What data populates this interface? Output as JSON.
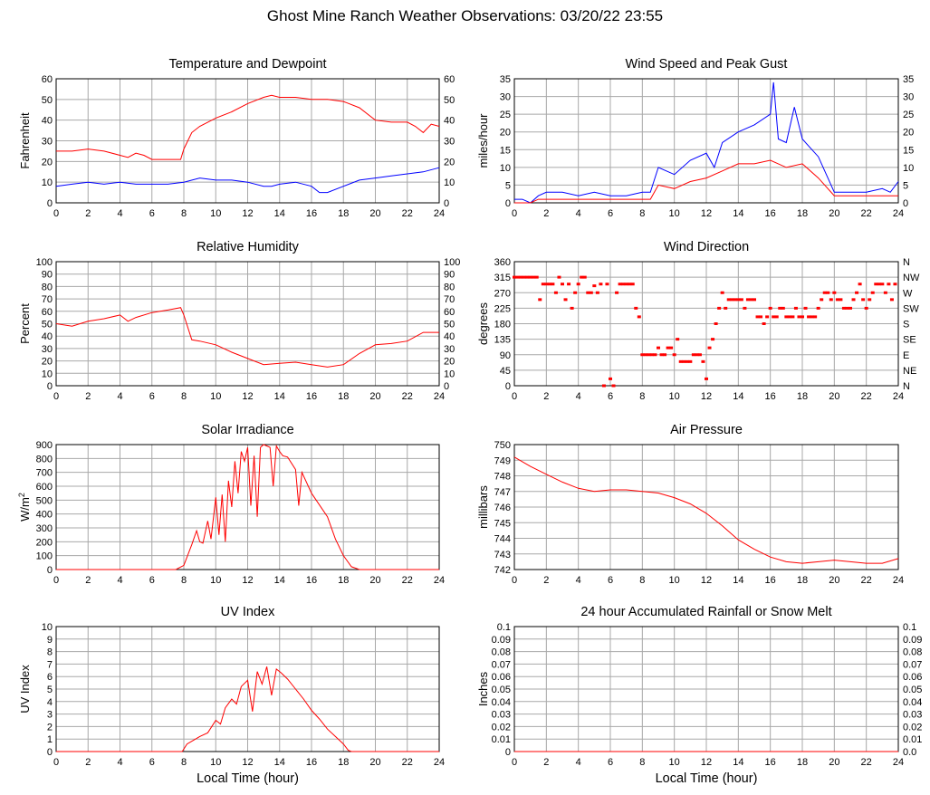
{
  "page_title": "Ghost Mine Ranch Weather Observations: 03/20/22 23:55",
  "x_axis_label": "Local Time (hour)",
  "chart_data": [
    {
      "id": "temp",
      "type": "line",
      "title": "Temperature and Dewpoint",
      "ylabel": "Fahrenheit",
      "xlim": [
        0,
        24
      ],
      "ylim": [
        0,
        60
      ],
      "yticks": [
        0,
        10,
        20,
        30,
        40,
        50,
        60
      ],
      "right_ticks": [
        "0",
        "10",
        "20",
        "30",
        "40",
        "50",
        "60"
      ],
      "grid": true,
      "series": [
        {
          "color": "#ff0000",
          "x": [
            0,
            1,
            2,
            3,
            4,
            4.5,
            5,
            5.5,
            6,
            6.5,
            7,
            7.8,
            8,
            8.5,
            9,
            10,
            11,
            12,
            13,
            13.5,
            14,
            15,
            16,
            17,
            18,
            19,
            20,
            21,
            22,
            22.5,
            23,
            23.5,
            24
          ],
          "values": [
            25,
            25,
            26,
            25,
            23,
            22,
            24,
            23,
            21,
            21,
            21,
            21,
            26,
            34,
            37,
            41,
            44,
            48,
            51,
            52,
            51,
            51,
            50,
            50,
            49,
            46,
            40,
            39,
            39,
            37,
            34,
            38,
            37
          ]
        },
        {
          "color": "#0000ff",
          "x": [
            0,
            1,
            2,
            3,
            4,
            5,
            6,
            7,
            8,
            9,
            10,
            11,
            12,
            13,
            13.5,
            14,
            15,
            16,
            16.5,
            17,
            18,
            19,
            20,
            21,
            22,
            23,
            24
          ],
          "values": [
            8,
            9,
            10,
            9,
            10,
            9,
            9,
            9,
            10,
            12,
            11,
            11,
            10,
            8,
            8,
            9,
            10,
            8,
            5,
            5,
            8,
            11,
            12,
            13,
            14,
            15,
            17
          ]
        }
      ]
    },
    {
      "id": "wind",
      "type": "line",
      "title": "Wind Speed and Peak Gust",
      "ylabel": "miles/hour",
      "xlim": [
        0,
        24
      ],
      "ylim": [
        0,
        35
      ],
      "yticks": [
        0,
        5,
        10,
        15,
        20,
        25,
        30,
        35
      ],
      "right_ticks": [
        "0",
        "5",
        "10",
        "15",
        "20",
        "25",
        "30",
        "35"
      ],
      "grid": true,
      "series": [
        {
          "color": "#0000ff",
          "x": [
            0,
            0.5,
            1,
            1.5,
            2,
            3,
            4,
            5,
            6,
            7,
            8,
            8.5,
            9,
            10,
            11,
            12,
            12.5,
            13,
            14,
            15,
            16,
            16.2,
            16.5,
            17,
            17.5,
            18,
            19,
            19.5,
            20,
            21,
            22,
            23,
            23.5,
            24
          ],
          "values": [
            1,
            1,
            0,
            2,
            3,
            3,
            2,
            3,
            2,
            2,
            3,
            3,
            10,
            8,
            12,
            14,
            10,
            17,
            20,
            22,
            25,
            34,
            18,
            17,
            27,
            18,
            13,
            8,
            3,
            3,
            3,
            4,
            3,
            6
          ]
        },
        {
          "color": "#ff0000",
          "x": [
            0,
            1,
            1.5,
            2,
            3,
            4,
            5,
            6,
            7,
            8,
            8.5,
            9,
            10,
            11,
            12,
            13,
            14,
            15,
            16,
            17,
            18,
            19,
            20,
            21,
            22,
            23,
            24
          ],
          "values": [
            0,
            0,
            1,
            1,
            1,
            1,
            1,
            1,
            1,
            1,
            1,
            5,
            4,
            6,
            7,
            9,
            11,
            11,
            12,
            10,
            11,
            7,
            2,
            2,
            2,
            2,
            2
          ]
        }
      ]
    },
    {
      "id": "rh",
      "type": "line",
      "title": "Relative Humidity",
      "ylabel": "Percent",
      "xlim": [
        0,
        24
      ],
      "ylim": [
        0,
        100
      ],
      "yticks": [
        0,
        10,
        20,
        30,
        40,
        50,
        60,
        70,
        80,
        90,
        100
      ],
      "right_ticks": [
        "0",
        "10",
        "20",
        "30",
        "40",
        "50",
        "60",
        "70",
        "80",
        "90",
        "100"
      ],
      "grid": true,
      "series": [
        {
          "color": "#ff0000",
          "x": [
            0,
            1,
            2,
            3,
            4,
            4.5,
            5,
            6,
            7,
            7.8,
            8,
            8.5,
            9,
            10,
            11,
            12,
            13,
            14,
            15,
            16,
            17,
            18,
            19,
            20,
            21,
            22,
            23,
            24
          ],
          "values": [
            50,
            48,
            52,
            54,
            57,
            52,
            55,
            59,
            61,
            63,
            57,
            37,
            36,
            33,
            27,
            22,
            17,
            18,
            19,
            17,
            15,
            17,
            26,
            33,
            34,
            36,
            43,
            43
          ]
        }
      ]
    },
    {
      "id": "wdir",
      "type": "scatter",
      "title": "Wind Direction",
      "ylabel": "degrees",
      "xlim": [
        0,
        24
      ],
      "ylim": [
        0,
        360
      ],
      "yticks": [
        0,
        45,
        90,
        135,
        180,
        225,
        270,
        315,
        360
      ],
      "right_ticks": [
        "N",
        "NE",
        "E",
        "SE",
        "S",
        "SW",
        "W",
        "NW",
        "N"
      ],
      "grid": true,
      "series": [
        {
          "color": "#ff0000",
          "x": [
            0,
            0.2,
            0.4,
            0.6,
            0.8,
            1.0,
            1.2,
            1.4,
            1.6,
            1.8,
            2.0,
            2.2,
            2.4,
            2.6,
            2.8,
            3.0,
            3.2,
            3.4,
            3.6,
            3.8,
            4.0,
            4.2,
            4.4,
            4.6,
            4.8,
            5.0,
            5.2,
            5.4,
            5.6,
            5.8,
            6.0,
            6.2,
            6.4,
            6.6,
            6.8,
            7.0,
            7.2,
            7.4,
            7.6,
            7.8,
            8.0,
            8.2,
            8.4,
            8.6,
            8.8,
            9.0,
            9.2,
            9.4,
            9.6,
            9.8,
            10.0,
            10.2,
            10.4,
            10.6,
            10.8,
            11.0,
            11.2,
            11.4,
            11.6,
            11.8,
            12.0,
            12.2,
            12.4,
            12.6,
            12.8,
            13.0,
            13.2,
            13.4,
            13.6,
            13.8,
            14.0,
            14.2,
            14.4,
            14.6,
            14.8,
            15.0,
            15.2,
            15.4,
            15.6,
            15.8,
            16.0,
            16.2,
            16.4,
            16.6,
            16.8,
            17.0,
            17.2,
            17.4,
            17.6,
            17.8,
            18.0,
            18.2,
            18.4,
            18.6,
            18.8,
            19.0,
            19.2,
            19.4,
            19.6,
            19.8,
            20.0,
            20.2,
            20.4,
            20.6,
            20.8,
            21.0,
            21.2,
            21.4,
            21.6,
            21.8,
            22.0,
            22.2,
            22.4,
            22.6,
            22.8,
            23.0,
            23.2,
            23.4,
            23.6,
            23.8
          ],
          "values": [
            315,
            315,
            315,
            315,
            315,
            315,
            315,
            315,
            250,
            295,
            295,
            295,
            295,
            270,
            315,
            295,
            250,
            295,
            225,
            270,
            295,
            315,
            315,
            270,
            270,
            290,
            270,
            295,
            0,
            295,
            20,
            0,
            270,
            295,
            295,
            295,
            295,
            295,
            225,
            200,
            90,
            90,
            90,
            90,
            90,
            110,
            90,
            90,
            110,
            110,
            90,
            135,
            70,
            70,
            70,
            70,
            90,
            90,
            90,
            70,
            20,
            110,
            135,
            180,
            225,
            270,
            225,
            250,
            250,
            250,
            250,
            250,
            225,
            250,
            250,
            250,
            200,
            200,
            180,
            200,
            225,
            200,
            200,
            225,
            225,
            200,
            200,
            200,
            225,
            200,
            200,
            225,
            200,
            200,
            200,
            225,
            250,
            270,
            270,
            250,
            270,
            250,
            250,
            225,
            225,
            225,
            250,
            270,
            295,
            250,
            225,
            250,
            270,
            295,
            295,
            295,
            270,
            295,
            250,
            295
          ]
        }
      ]
    },
    {
      "id": "solar",
      "type": "line",
      "title": "Solar Irradiance",
      "ylabel": "W/m2",
      "xlim": [
        0,
        24
      ],
      "ylim": [
        0,
        900
      ],
      "yticks": [
        0,
        100,
        200,
        300,
        400,
        500,
        600,
        700,
        800,
        900
      ],
      "grid": true,
      "series": [
        {
          "color": "#ff0000",
          "x": [
            0,
            7.5,
            8,
            8.5,
            8.8,
            9,
            9.2,
            9.5,
            9.7,
            10,
            10.2,
            10.4,
            10.6,
            10.8,
            11,
            11.2,
            11.4,
            11.6,
            11.8,
            12,
            12.2,
            12.4,
            12.6,
            12.8,
            13,
            13.2,
            13.4,
            13.6,
            13.8,
            14,
            14.2,
            14.5,
            15,
            15.2,
            15.4,
            16,
            17,
            17.5,
            18,
            18.5,
            19,
            24
          ],
          "values": [
            0,
            0,
            30,
            180,
            280,
            200,
            190,
            350,
            220,
            520,
            250,
            540,
            200,
            640,
            450,
            780,
            550,
            850,
            780,
            880,
            460,
            820,
            380,
            880,
            900,
            890,
            880,
            600,
            890,
            850,
            820,
            810,
            720,
            460,
            700,
            550,
            380,
            220,
            100,
            20,
            0,
            0
          ]
        }
      ]
    },
    {
      "id": "pressure",
      "type": "line",
      "title": "Air Pressure",
      "ylabel": "millibars",
      "xlim": [
        0,
        24
      ],
      "ylim": [
        742,
        750
      ],
      "yticks": [
        742,
        743,
        744,
        745,
        746,
        747,
        748,
        749,
        750
      ],
      "grid": true,
      "series": [
        {
          "color": "#ff0000",
          "x": [
            0,
            1,
            2,
            3,
            4,
            5,
            6,
            7,
            8,
            9,
            10,
            11,
            12,
            13,
            14,
            15,
            16,
            17,
            18,
            19,
            20,
            21,
            22,
            23,
            24
          ],
          "values": [
            749.2,
            748.6,
            748.1,
            747.6,
            747.2,
            747.0,
            747.1,
            747.1,
            747.0,
            746.9,
            746.6,
            746.2,
            745.6,
            744.8,
            743.9,
            743.3,
            742.8,
            742.5,
            742.4,
            742.5,
            742.6,
            742.5,
            742.4,
            742.4,
            742.7
          ]
        }
      ]
    },
    {
      "id": "uv",
      "type": "line",
      "title": "UV Index",
      "ylabel": "UV Index",
      "xlim": [
        0,
        24
      ],
      "ylim": [
        0,
        10
      ],
      "yticks": [
        0,
        1,
        2,
        3,
        4,
        5,
        6,
        7,
        8,
        9,
        10
      ],
      "grid": true,
      "series": [
        {
          "color": "#ff0000",
          "x": [
            0,
            7.9,
            8.2,
            8.6,
            9,
            9.5,
            10,
            10.3,
            10.6,
            11,
            11.3,
            11.6,
            12,
            12.3,
            12.6,
            12.9,
            13.2,
            13.5,
            13.8,
            14.1,
            14.5,
            15,
            15.5,
            16,
            16.5,
            17,
            17.5,
            18,
            18.3,
            18.5,
            24
          ],
          "values": [
            0,
            0,
            0.6,
            0.9,
            1.2,
            1.5,
            2.5,
            2.2,
            3.5,
            4.2,
            3.8,
            5.2,
            5.7,
            3.2,
            6.4,
            5.4,
            6.8,
            4.5,
            6.6,
            6.3,
            5.8,
            5.0,
            4.2,
            3.3,
            2.6,
            1.8,
            1.2,
            0.6,
            0.1,
            0,
            0
          ]
        }
      ]
    },
    {
      "id": "rain",
      "type": "line",
      "title": "24 hour Accumulated Rainfall or Snow Melt",
      "ylabel": "Inches",
      "xlim": [
        0,
        24
      ],
      "ylim": [
        0,
        0.1
      ],
      "yticks": [
        0,
        0.01,
        0.02,
        0.03,
        0.04,
        0.05,
        0.06,
        0.07,
        0.08,
        0.09,
        0.1
      ],
      "right_ticks": [
        "0.0",
        "0.01",
        "0.02",
        "0.03",
        "0.04",
        "0.05",
        "0.06",
        "0.07",
        "0.08",
        "0.09",
        "0.1"
      ],
      "grid": true,
      "series": [
        {
          "color": "#ff0000",
          "x": [
            0,
            24
          ],
          "values": [
            0,
            0
          ]
        }
      ]
    }
  ]
}
